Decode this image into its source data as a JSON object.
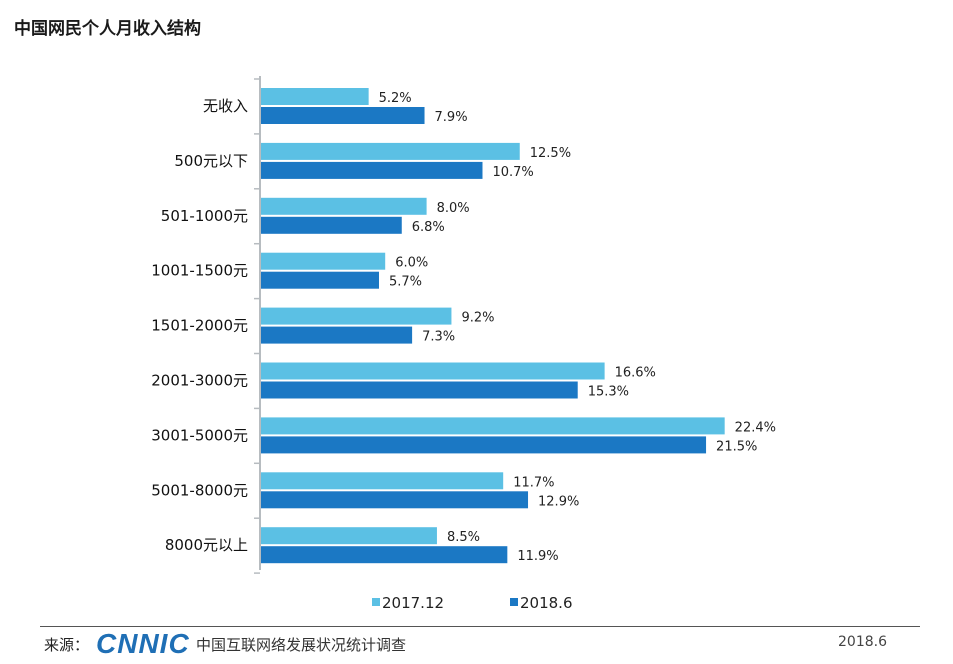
{
  "title": "中国网民个人月收入结构",
  "colors": {
    "series_2017": "#5bc0e4",
    "series_2018": "#1b78c4",
    "axis": "#b7bcc0"
  },
  "chart_data": {
    "type": "bar",
    "orientation": "horizontal",
    "title": "中国网民个人月收入结构",
    "categories": [
      "无收入",
      "500元以下",
      "501-1000元",
      "1001-1500元",
      "1501-2000元",
      "2001-3000元",
      "3001-5000元",
      "5001-8000元",
      "8000元以上"
    ],
    "series": [
      {
        "name": "2017.12",
        "values": [
          5.2,
          12.5,
          8.0,
          6.0,
          9.2,
          16.6,
          22.4,
          11.7,
          8.5
        ],
        "labels": [
          "5.2%",
          "12.5%",
          "8.0%",
          "6.0%",
          "9.2%",
          "16.6%",
          "22.4%",
          "11.7%",
          "8.5%"
        ]
      },
      {
        "name": "2018.6",
        "values": [
          7.9,
          10.7,
          6.8,
          5.7,
          7.3,
          15.3,
          21.5,
          12.9,
          11.9
        ],
        "labels": [
          "7.9%",
          "10.7%",
          "6.8%",
          "5.7%",
          "7.3%",
          "15.3%",
          "21.5%",
          "12.9%",
          "11.9%"
        ]
      }
    ],
    "unit": "%",
    "legend_position": "bottom",
    "grid": false
  },
  "footer": {
    "source_label": "来源：",
    "logo_text": "CNNIC",
    "survey_name": "中国互联网络发展状况统计调查",
    "date": "2018.6"
  }
}
